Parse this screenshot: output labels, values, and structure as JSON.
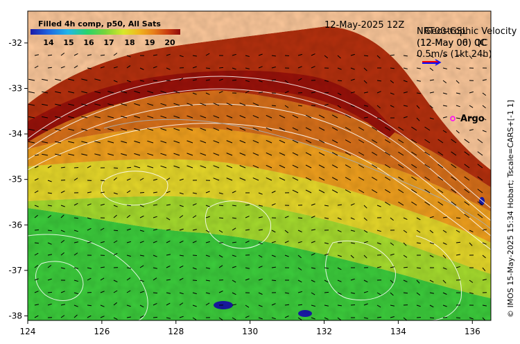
{
  "colorbar": {
    "title": "Filled 4h comp, p50, All Sats",
    "ticks": [
      "14",
      "15",
      "16",
      "17",
      "18",
      "19",
      "20"
    ],
    "colors": [
      "#1a1aa8",
      "#1f66e0",
      "#22b6e8",
      "#2ad46a",
      "#7ad43a",
      "#d8e82a",
      "#f0b81e",
      "#e8801a",
      "#c83a10",
      "#8e0c0c"
    ]
  },
  "date_label": "12-May-2025 12Z",
  "velocity_legend": {
    "line1": "NRT00-GSL",
    "line2": "(12-May 00) 0C",
    "line3": "Geostrophic Velocity",
    "line4": "(12-May 06) QC",
    "scale": "0.5m/s (1kt 24h)",
    "arrow_colors": [
      "#ff0000",
      "#0000ff"
    ]
  },
  "argo": {
    "label": "Argo",
    "marker_color": "#ff00ff"
  },
  "credit": "© IMOS 15-May-2025 15:34 Hobart; Tscale=CARS+[-1 1]",
  "axes": {
    "x_ticks": [
      "124",
      "126",
      "128",
      "130",
      "132",
      "134",
      "136"
    ],
    "y_ticks": [
      "-32",
      "-33",
      "-34",
      "-35",
      "-36",
      "-37",
      "-38"
    ],
    "xlim": [
      124,
      136.5
    ],
    "ylim": [
      -38.1,
      -31.3
    ]
  },
  "colors": {
    "land": "#fcc89b",
    "warm": "#a8190c",
    "mid": "#e88a1c",
    "cool": "#f0c21e",
    "green": "#3ccc3c"
  }
}
